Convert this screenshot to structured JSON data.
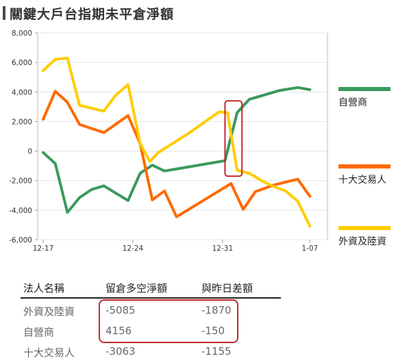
{
  "title": "關鍵大戶台指期未平倉淨額",
  "colors": {
    "green": "#3a9a5c",
    "orange": "#ff6a00",
    "yellow": "#ffcc00",
    "highlight": "#c0272d"
  },
  "chart_data": {
    "type": "line",
    "ylim": [
      -6000,
      8000
    ],
    "yticks": [
      8000,
      6000,
      4000,
      2000,
      0,
      -2000,
      -4000,
      -6000
    ],
    "ytick_labels": [
      "8,000",
      "6,000",
      "4,000",
      "2,000",
      "0",
      "-2,000",
      "-4,000",
      "-6,000"
    ],
    "xlim": [
      0,
      23
    ],
    "x_ticks": [
      {
        "x": 0,
        "label": "12-17"
      },
      {
        "x": 7.4,
        "label": "12-24"
      },
      {
        "x": 14.8,
        "label": "12-31"
      },
      {
        "x": 22,
        "label": "1-07"
      }
    ],
    "legend_position": "right",
    "series": [
      {
        "name": "自營商",
        "color": "#3a9a5c",
        "points": [
          [
            0,
            -100
          ],
          [
            1,
            -850
          ],
          [
            2,
            -4150
          ],
          [
            3,
            -3150
          ],
          [
            4,
            -2600
          ],
          [
            5,
            -2350
          ],
          [
            7,
            -3350
          ],
          [
            8,
            -1500
          ],
          [
            9,
            -950
          ],
          [
            10,
            -1350
          ],
          [
            15,
            -650
          ],
          [
            16,
            2600
          ],
          [
            17,
            3500
          ],
          [
            19.5,
            4100
          ],
          [
            21,
            4300
          ],
          [
            22,
            4156
          ]
        ]
      },
      {
        "name": "十大交易人",
        "color": "#ff6a00",
        "points": [
          [
            0,
            2150
          ],
          [
            1,
            4050
          ],
          [
            2,
            3300
          ],
          [
            3,
            1800
          ],
          [
            5,
            1250
          ],
          [
            7,
            2400
          ],
          [
            8,
            500
          ],
          [
            9,
            -3300
          ],
          [
            10,
            -2700
          ],
          [
            11,
            -4450
          ],
          [
            15.5,
            -2200
          ],
          [
            16.5,
            -3950
          ],
          [
            17.5,
            -2750
          ],
          [
            19,
            -2300
          ],
          [
            21,
            -1900
          ],
          [
            22,
            -3063
          ]
        ]
      },
      {
        "name": "外資及陸資",
        "color": "#ffcc00",
        "points": [
          [
            0,
            5450
          ],
          [
            1,
            6200
          ],
          [
            2,
            6300
          ],
          [
            3,
            3100
          ],
          [
            4,
            2900
          ],
          [
            5,
            2700
          ],
          [
            6,
            3800
          ],
          [
            7,
            4500
          ],
          [
            8,
            500
          ],
          [
            8.8,
            -700
          ],
          [
            9.5,
            -100
          ],
          [
            12,
            1200
          ],
          [
            14.5,
            2650
          ],
          [
            15.2,
            2600
          ],
          [
            16,
            -1300
          ],
          [
            17,
            -1500
          ],
          [
            18,
            -2000
          ],
          [
            19,
            -2400
          ],
          [
            20,
            -2700
          ],
          [
            21,
            -3400
          ],
          [
            22,
            -5085
          ]
        ]
      }
    ],
    "highlight": {
      "x0": 15,
      "x1": 16.4,
      "y0": 3400,
      "y1": -1700
    }
  },
  "table": {
    "headers": [
      "法人名稱",
      "留倉多空淨額",
      "與昨日差額"
    ],
    "rows": [
      {
        "name": "外資及陸資",
        "net": "-5085",
        "diff": "-1870"
      },
      {
        "name": "自營商",
        "net": "4156",
        "diff": "-150"
      },
      {
        "name": "十大交易人",
        "net": "-3063",
        "diff": "-1155"
      }
    ]
  }
}
